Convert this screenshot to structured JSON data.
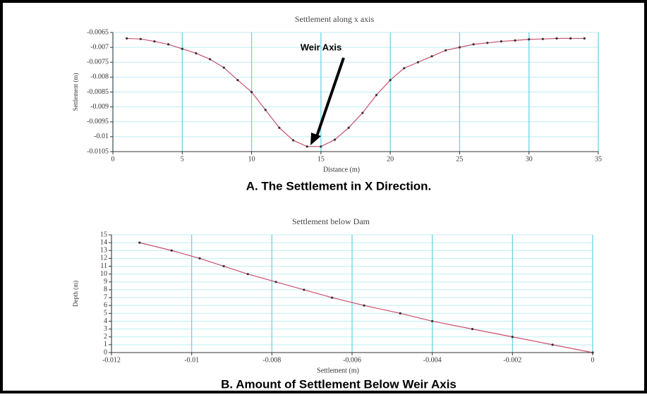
{
  "chart_data": [
    {
      "type": "line",
      "title": "Settlement along x axis",
      "x_label": "Distance (m)",
      "y_label": "Settlement (m)",
      "caption": "A. The Settlement in X Direction.",
      "annotation": "Weir Axis",
      "x": [
        1,
        2,
        3,
        4,
        5,
        6,
        7,
        8,
        9,
        10,
        11,
        12,
        13,
        14,
        15,
        16,
        17,
        18,
        19,
        20,
        21,
        22,
        23,
        24,
        25,
        26,
        27,
        28,
        29,
        30,
        31,
        32,
        33,
        34
      ],
      "values": [
        -0.0067,
        -0.00672,
        -0.0068,
        -0.0069,
        -0.00705,
        -0.0072,
        -0.0074,
        -0.00768,
        -0.0081,
        -0.0085,
        -0.0091,
        -0.0097,
        -0.01012,
        -0.01033,
        -0.01033,
        -0.0101,
        -0.0097,
        -0.0092,
        -0.0086,
        -0.0081,
        -0.0077,
        -0.0075,
        -0.0073,
        -0.0071,
        -0.007,
        -0.0069,
        -0.00685,
        -0.0068,
        -0.00677,
        -0.00673,
        -0.00672,
        -0.0067,
        -0.0067,
        -0.0067
      ],
      "color": "#c8506e",
      "marker_color": "#333333",
      "xlim": [
        0,
        35
      ],
      "xticks": [
        0,
        5,
        10,
        15,
        20,
        25,
        30,
        35
      ],
      "ylim": [
        -0.0105,
        -0.0065
      ],
      "yticks": [
        -0.0105,
        -0.01,
        -0.0095,
        -0.009,
        -0.0085,
        -0.008,
        -0.0075,
        -0.007,
        -0.0065
      ],
      "grid": true
    },
    {
      "type": "line",
      "title": "Settlement below Dam",
      "x_label": "Settlement (m)",
      "y_label": "Depth (m)",
      "caption": "B. Amount of Settlement Below Weir Axis",
      "x": [
        -0.0113,
        -0.0105,
        -0.0098,
        -0.0092,
        -0.0086,
        -0.0079,
        -0.0072,
        -0.0065,
        -0.0057,
        -0.0048,
        -0.004,
        -0.003,
        -0.002,
        -0.001,
        0
      ],
      "values": [
        14,
        13,
        12,
        11,
        10,
        9,
        8,
        7,
        6,
        5,
        4,
        3,
        2,
        1,
        0
      ],
      "color": "#c8506e",
      "marker_color": "#333333",
      "xlim": [
        -0.012,
        0
      ],
      "xticks": [
        -0.012,
        -0.01,
        -0.008,
        -0.006,
        -0.004,
        -0.002,
        0
      ],
      "ylim": [
        0,
        15
      ],
      "yticks": [
        0,
        1,
        2,
        3,
        4,
        5,
        6,
        7,
        8,
        9,
        10,
        11,
        12,
        13,
        14,
        15
      ],
      "grid": true
    }
  ]
}
